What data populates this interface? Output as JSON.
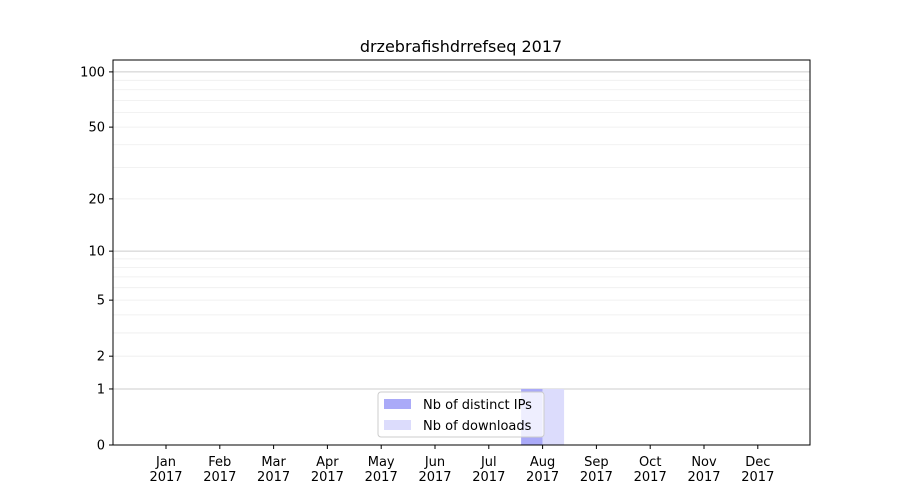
{
  "chart_data": {
    "type": "bar",
    "title": "drzebrafishdrrefseq 2017",
    "xlabel": "",
    "ylabel": "",
    "yscale": "log(1+y)",
    "ylim": [
      0,
      116
    ],
    "grid": true,
    "legend_placement": "lower-center",
    "categories": [
      "Jan\n2017",
      "Feb\n2017",
      "Mar\n2017",
      "Apr\n2017",
      "May\n2017",
      "Jun\n2017",
      "Jul\n2017",
      "Aug\n2017",
      "Sep\n2017",
      "Oct\n2017",
      "Nov\n2017",
      "Dec\n2017"
    ],
    "ytick_labels": [
      "0",
      "1",
      "2",
      "5",
      "10",
      "20",
      "50",
      "100"
    ],
    "yticks": [
      0,
      1,
      2,
      5,
      10,
      20,
      50,
      100
    ],
    "series": [
      {
        "name": "Nb of distinct IPs",
        "color": "#aaaaf8",
        "values": [
          0,
          0,
          0,
          0,
          0,
          0,
          0,
          1,
          0,
          0,
          0,
          0
        ]
      },
      {
        "name": "Nb of downloads",
        "color": "#dcdcfc",
        "values": [
          0,
          0,
          0,
          0,
          0,
          0,
          0,
          1,
          0,
          0,
          0,
          0
        ]
      }
    ]
  }
}
